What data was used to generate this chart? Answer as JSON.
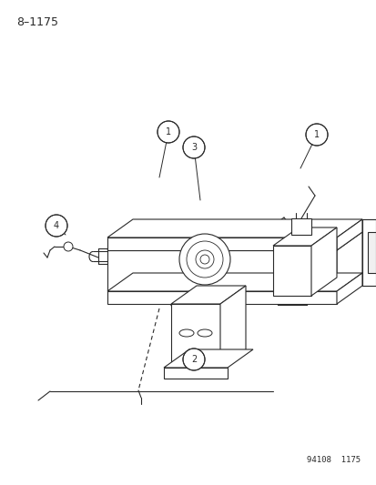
{
  "title": "8–1175",
  "footnote": "94108  1175",
  "bg_color": "#ffffff",
  "line_color": "#2a2a2a",
  "lw": 0.8,
  "title_fontsize": 9,
  "footnote_fontsize": 6.5,
  "callout_fontsize": 7,
  "callout_r": 0.018,
  "fig_w": 4.14,
  "fig_h": 5.33,
  "dpi": 100
}
